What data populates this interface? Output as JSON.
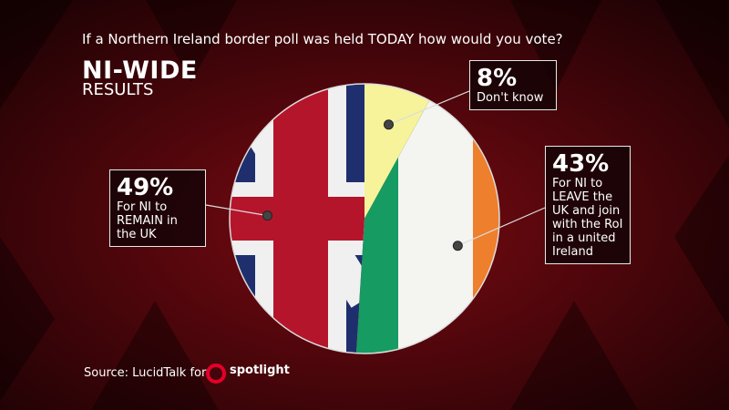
{
  "title": "If a Northern Ireland border poll was held TODAY how would you vote?",
  "heading": "NI-WIDE",
  "subheading": "RESULTS",
  "source": "Source: LucidTalk for",
  "logo": "spotlight",
  "chart_data": {
    "type": "pie",
    "categories": [
      "Don't know",
      "For NI to LEAVE the UK and join with the RoI in a united Ireland",
      "For NI to REMAIN in the UK"
    ],
    "values": [
      8,
      43,
      49
    ],
    "value_labels": [
      "8%",
      "43%",
      "49%"
    ],
    "colors": [
      "#f6f39a",
      "#169b62",
      "#b5152b"
    ]
  }
}
